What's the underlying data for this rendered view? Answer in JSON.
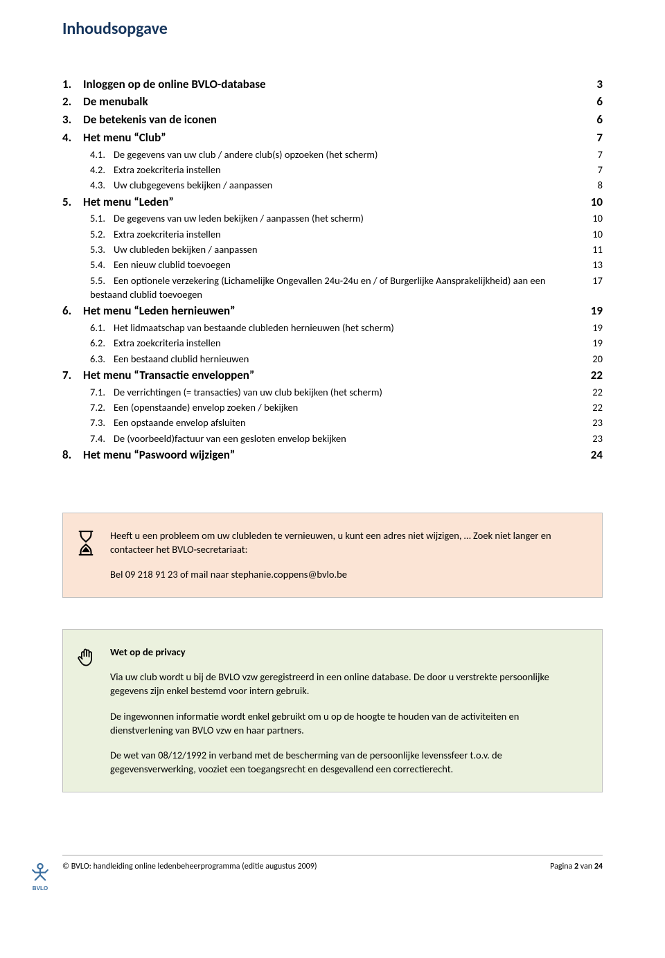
{
  "title": "Inhoudsopgave",
  "toc": [
    {
      "level": 1,
      "num": "1.",
      "text": "Inloggen op de online BVLO-database",
      "page": "3"
    },
    {
      "level": 1,
      "num": "2.",
      "text": "De menubalk",
      "page": "6"
    },
    {
      "level": 1,
      "num": "3.",
      "text": "De betekenis van de iconen",
      "page": "6"
    },
    {
      "level": 1,
      "num": "4.",
      "text": "Het menu “Club”",
      "page": "7"
    },
    {
      "level": 2,
      "num": "4.1.",
      "text": "De gegevens van uw club / andere club(s) opzoeken (het scherm)",
      "page": "7"
    },
    {
      "level": 2,
      "num": "4.2.",
      "text": "Extra zoekcriteria instellen",
      "page": "7"
    },
    {
      "level": 2,
      "num": "4.3.",
      "text": "Uw clubgegevens bekijken / aanpassen",
      "page": "8"
    },
    {
      "level": 1,
      "num": "5.",
      "text": "Het menu “Leden”",
      "page": "10"
    },
    {
      "level": 2,
      "num": "5.1.",
      "text": "De gegevens van uw leden bekijken / aanpassen (het scherm)",
      "page": "10"
    },
    {
      "level": 2,
      "num": "5.2.",
      "text": "Extra zoekcriteria instellen",
      "page": "10"
    },
    {
      "level": 2,
      "num": "5.3.",
      "text": "Uw clubleden bekijken / aanpassen",
      "page": "11"
    },
    {
      "level": 2,
      "num": "5.4.",
      "text": "Een nieuw clublid toevoegen",
      "page": "13"
    },
    {
      "level": 2,
      "num": "5.5.",
      "text": "Een optionele verzekering (Lichamelijke Ongevallen 24u-24u en / of Burgerlijke Aansprakelijkheid)  aan een bestaand clublid toevoegen",
      "page": "17"
    },
    {
      "level": 1,
      "num": "6.",
      "text": "Het menu “Leden hernieuwen”",
      "page": "19"
    },
    {
      "level": 2,
      "num": "6.1.",
      "text": "Het lidmaatschap van bestaande clubleden hernieuwen (het scherm)",
      "page": "19"
    },
    {
      "level": 2,
      "num": "6.2.",
      "text": "Extra zoekcriteria instellen",
      "page": "19"
    },
    {
      "level": 2,
      "num": "6.3.",
      "text": "Een bestaand clublid hernieuwen",
      "page": "20"
    },
    {
      "level": 1,
      "num": "7.",
      "text": "Het menu “Transactie enveloppen”",
      "page": "22"
    },
    {
      "level": 2,
      "num": "7.1.",
      "text": "De verrichtingen (= transacties) van uw club bekijken (het scherm)",
      "page": "22"
    },
    {
      "level": 2,
      "num": "7.2.",
      "text": "Een (openstaande) envelop zoeken / bekijken",
      "page": "22"
    },
    {
      "level": 2,
      "num": "7.3.",
      "text": "Een opstaande envelop afsluiten",
      "page": "23"
    },
    {
      "level": 2,
      "num": "7.4.",
      "text": "De (voorbeeld)factuur van een gesloten envelop bekijken",
      "page": "23"
    },
    {
      "level": 1,
      "num": "8.",
      "text": "Het menu “Paswoord wijzigen”",
      "page": "24"
    }
  ],
  "helpbox": {
    "line1": "Heeft u een probleem om uw clubleden te vernieuwen, u kunt een adres niet wijzigen, … Zoek niet langer en contacteer het BVLO-secretariaat:",
    "line2": "Bel 09 218 91 23 of mail naar stephanie.coppens@bvlo.be"
  },
  "privacybox": {
    "heading": "Wet op de privacy",
    "p1": "Via uw club wordt u bij de BVLO vzw geregistreerd in een online database. De door u verstrekte persoonlijke gegevens zijn enkel bestemd voor intern gebruik.",
    "p2": "De ingewonnen informatie wordt enkel gebruikt om u op de hoogte te houden van de activiteiten en dienstverlening van BVLO vzw en haar partners.",
    "p3": "De wet van 08/12/1992 in verband met de bescherming van de persoonlijke levenssfeer t.o.v. de gegevensverwerking, vooziet een toegangsrecht en desgevallend een correctierecht."
  },
  "footer": {
    "left": "© BVLO: handleiding online ledenbeheerprogramma (editie augustus 2009)",
    "right_prefix": "Pagina ",
    "right_pg": "2",
    "right_mid": " van ",
    "right_total": "24",
    "logo_text": "BVLO"
  },
  "colors": {
    "title": "#17365d",
    "peach": "#fbe4d5",
    "green": "#ebf1de",
    "logo": "#3b6fa0"
  }
}
